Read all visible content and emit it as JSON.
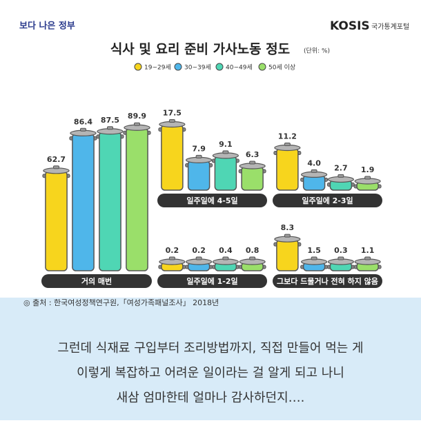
{
  "header": {
    "logo": "보다 나은 정부",
    "brand": "KOSIS",
    "brand_sub": "국가통계포털"
  },
  "chart_data": {
    "type": "bar",
    "title": "식사 및 요리 준비 가사노동 정도",
    "unit": "(단위: %)",
    "categories": [
      "거의 매번",
      "일주일에 4-5일",
      "일주일에 2-3일",
      "일주일에 1-2일",
      "그보다 드물거나 전혀 하지 않음"
    ],
    "series": [
      {
        "name": "19~29세",
        "color": "#f7d51d",
        "values": [
          62.7,
          17.5,
          11.2,
          0.2,
          8.3
        ],
        "value_labels": [
          "62.7",
          "17.5",
          "11.2",
          "0.2",
          "8.3"
        ]
      },
      {
        "name": "30~39세",
        "color": "#4fb6ea",
        "values": [
          86.4,
          7.9,
          4.0,
          0.2,
          1.5
        ],
        "value_labels": [
          "86.4",
          "7.9",
          "4.0",
          "0.2",
          "1.5"
        ]
      },
      {
        "name": "40~49세",
        "color": "#4fd6b4",
        "values": [
          87.5,
          9.1,
          2.7,
          0.4,
          0.3
        ],
        "value_labels": [
          "87.5",
          "9.1",
          "2.7",
          "0.4",
          "0.3"
        ]
      },
      {
        "name": "50세 이상",
        "color": "#9adf6a",
        "values": [
          89.9,
          6.3,
          1.9,
          0.8,
          1.1
        ],
        "value_labels": [
          "89.9",
          "6.3",
          "1.9",
          "0.8",
          "1.1"
        ]
      }
    ]
  },
  "source": "◎ 출처 : 한국여성정책연구원,「여성가족패널조사」 2018년",
  "caption": [
    "그런데 식재료 구입부터 조리방법까지, 직접 만들어 먹는 게",
    "이렇게 복잡하고 어려운 일이라는 걸 알게 되고 나니",
    "새삼 엄마한테 얼마나 감사하던지…."
  ]
}
